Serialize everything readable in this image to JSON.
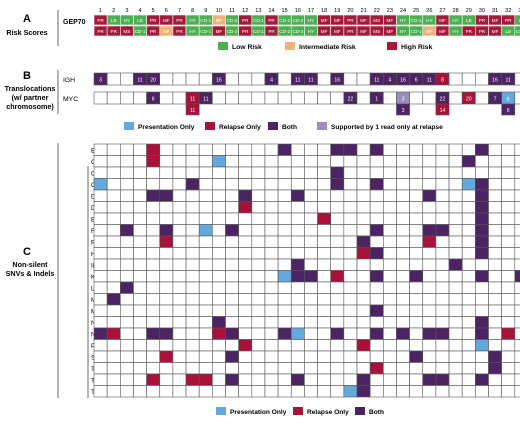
{
  "panels": {
    "a": {
      "letter": "A",
      "title": "Risk Scores"
    },
    "b": {
      "letter": "B",
      "title_lines": [
        "Translocations",
        "(w/ partner",
        "chromosome)"
      ]
    },
    "c": {
      "letter": "C",
      "title_lines": [
        "Non-silent",
        "SNVs & Indels"
      ]
    }
  },
  "colors": {
    "low": "#4caf50",
    "intermediate": "#f0b27a",
    "high": "#a31a3a",
    "presentation_only": "#64a9dc",
    "relapse_only": "#a8123a",
    "both": "#4d2463",
    "one_read": "#9d8cc2",
    "grid": "#555555",
    "empty": "#ffffff"
  },
  "sample_numbers": [
    "1",
    "2",
    "3",
    "4",
    "5",
    "6",
    "7",
    "8",
    "9",
    "10",
    "11",
    "12",
    "13",
    "14",
    "15",
    "16",
    "17",
    "18",
    "19",
    "20",
    "21",
    "22",
    "23",
    "24",
    "25",
    "26",
    "27",
    "28",
    "29",
    "30",
    "31",
    "32",
    "33"
  ],
  "gep70": {
    "label": "GEP70",
    "row1": [
      {
        "text": "PR",
        "risk": "high"
      },
      {
        "text": "LB",
        "risk": "low"
      },
      {
        "text": "HY",
        "risk": "low"
      },
      {
        "text": "LB",
        "risk": "low"
      },
      {
        "text": "PR",
        "risk": "high"
      },
      {
        "text": "MF",
        "risk": "high"
      },
      {
        "text": "PR",
        "risk": "high"
      },
      {
        "text": "HY",
        "risk": "low"
      },
      {
        "text": "CD-1",
        "risk": "low"
      },
      {
        "text": "MF",
        "risk": "intermediate"
      },
      {
        "text": "CD-2",
        "risk": "low"
      },
      {
        "text": "PR",
        "risk": "high"
      },
      {
        "text": "CD-1",
        "risk": "low"
      },
      {
        "text": "PR",
        "risk": "high"
      },
      {
        "text": "CD-2",
        "risk": "low"
      },
      {
        "text": "CD-2",
        "risk": "low"
      },
      {
        "text": "HY",
        "risk": "low"
      },
      {
        "text": "MF",
        "risk": "high"
      },
      {
        "text": "MF",
        "risk": "high"
      },
      {
        "text": "PR",
        "risk": "high"
      },
      {
        "text": "MF",
        "risk": "high"
      },
      {
        "text": "MS",
        "risk": "high"
      },
      {
        "text": "MF",
        "risk": "high"
      },
      {
        "text": "HY",
        "risk": "low"
      },
      {
        "text": "CD-1",
        "risk": "low"
      },
      {
        "text": "HY",
        "risk": "low"
      },
      {
        "text": "MF",
        "risk": "high"
      },
      {
        "text": "HY",
        "risk": "low"
      },
      {
        "text": "LB",
        "risk": "low"
      },
      {
        "text": "PR",
        "risk": "high"
      },
      {
        "text": "MF",
        "risk": "high"
      },
      {
        "text": "PR",
        "risk": "high"
      },
      {
        "text": "LB",
        "risk": "low"
      }
    ],
    "row2": [
      {
        "text": "PR",
        "risk": "high"
      },
      {
        "text": "PR",
        "risk": "high"
      },
      {
        "text": "MS",
        "risk": "high"
      },
      {
        "text": "CD-1",
        "risk": "low"
      },
      {
        "text": "PR",
        "risk": "high"
      },
      {
        "text": "MF",
        "risk": "intermediate"
      },
      {
        "text": "PR",
        "risk": "high"
      },
      {
        "text": "HY",
        "risk": "low"
      },
      {
        "text": "CD-1",
        "risk": "low"
      },
      {
        "text": "MF",
        "risk": "high"
      },
      {
        "text": "CD-2",
        "risk": "low"
      },
      {
        "text": "PR",
        "risk": "high"
      },
      {
        "text": "CD-1",
        "risk": "low"
      },
      {
        "text": "PR",
        "risk": "high"
      },
      {
        "text": "CD-2",
        "risk": "low"
      },
      {
        "text": "CD-2",
        "risk": "low"
      },
      {
        "text": "HY",
        "risk": "low"
      },
      {
        "text": "MF",
        "risk": "high"
      },
      {
        "text": "MF",
        "risk": "high"
      },
      {
        "text": "PR",
        "risk": "high"
      },
      {
        "text": "MF",
        "risk": "high"
      },
      {
        "text": "MS",
        "risk": "high"
      },
      {
        "text": "MF",
        "risk": "high"
      },
      {
        "text": "HY",
        "risk": "low"
      },
      {
        "text": "CD-1",
        "risk": "low"
      },
      {
        "text": "MF",
        "risk": "intermediate"
      },
      {
        "text": "MF",
        "risk": "high"
      },
      {
        "text": "HY",
        "risk": "low"
      },
      {
        "text": "PR",
        "risk": "high"
      },
      {
        "text": "PR",
        "risk": "high"
      },
      {
        "text": "MF",
        "risk": "high"
      },
      {
        "text": "LB",
        "risk": "low"
      },
      {
        "text": "CD-2",
        "risk": "low"
      }
    ]
  },
  "risk_legend": [
    {
      "key": "low",
      "label": "Low Risk"
    },
    {
      "key": "intermediate",
      "label": "Intermediate Risk"
    },
    {
      "key": "high",
      "label": "High Risk"
    }
  ],
  "translocations": {
    "IGH": {
      "label": "IGH",
      "cells": [
        {
          "col": 1,
          "status": "both",
          "partner": "3"
        },
        {
          "col": 4,
          "status": "both",
          "partner": "11"
        },
        {
          "col": 5,
          "status": "both",
          "partner": "20"
        },
        {
          "col": 10,
          "status": "both",
          "partner": "16"
        },
        {
          "col": 14,
          "status": "both",
          "partner": "4"
        },
        {
          "col": 16,
          "status": "both",
          "partner": "11"
        },
        {
          "col": 17,
          "status": "both",
          "partner": "11"
        },
        {
          "col": 19,
          "status": "both",
          "partner": "16"
        },
        {
          "col": 22,
          "status": "both",
          "partner": "11"
        },
        {
          "col": 23,
          "status": "both",
          "partner": "4"
        },
        {
          "col": 24,
          "status": "both",
          "partner": "16"
        },
        {
          "col": 25,
          "status": "both",
          "partner": "6"
        },
        {
          "col": 26,
          "status": "both",
          "partner": "11"
        },
        {
          "col": 27,
          "status": "relapse_only",
          "partner": "8"
        },
        {
          "col": 31,
          "status": "both",
          "partner": "16"
        },
        {
          "col": 32,
          "status": "both",
          "partner": "11"
        }
      ]
    },
    "MYC": {
      "label": "MYC",
      "cells": [
        {
          "col": 5,
          "status": "both",
          "partner": "6"
        },
        {
          "col": 8,
          "status": "relapse_only",
          "partner": "11"
        },
        {
          "col": 9,
          "status": "both",
          "partner": "11"
        },
        {
          "col": 20,
          "status": "both",
          "partner": "22"
        },
        {
          "col": 22,
          "status": "both",
          "partner": "1"
        },
        {
          "col": 24,
          "status": "one_read",
          "partner": "3"
        },
        {
          "col": 27,
          "status": "both",
          "partner": "22"
        },
        {
          "col": 29,
          "status": "relapse_only",
          "partner": "20"
        },
        {
          "col": 31,
          "status": "both",
          "partner": "7"
        },
        {
          "col": 32,
          "status": "presentation_only",
          "partner": "6"
        }
      ],
      "secondary": [
        {
          "col": 8,
          "status": "relapse_only",
          "partner": "11"
        },
        {
          "col": 24,
          "status": "both",
          "partner": "3"
        },
        {
          "col": 27,
          "status": "relapse_only",
          "partner": "14"
        },
        {
          "col": 32,
          "status": "both",
          "partner": "6"
        }
      ]
    }
  },
  "translocation_legend": [
    {
      "key": "presentation_only",
      "label": "Presentation Only"
    },
    {
      "key": "relapse_only",
      "label": "Relapse Only"
    },
    {
      "key": "both",
      "label": "Both"
    },
    {
      "key": "one_read",
      "label": "Supported by 1 read only at relapse"
    }
  ],
  "genes": [
    {
      "name": "BRAF",
      "cells": [
        [
          5,
          "relapse_only"
        ],
        [
          15,
          "both"
        ],
        [
          19,
          "both"
        ],
        [
          20,
          "both"
        ],
        [
          22,
          "both"
        ],
        [
          30,
          "both"
        ]
      ]
    },
    {
      "name": "CDKN2C",
      "cells": [
        [
          5,
          "relapse_only"
        ],
        [
          10,
          "presentation_only"
        ],
        [
          29,
          "both"
        ]
      ]
    },
    {
      "name": "CHD2",
      "cells": [
        [
          19,
          "both"
        ]
      ]
    },
    {
      "name": "CYLD",
      "cells": [
        [
          1,
          "presentation_only"
        ],
        [
          8,
          "both"
        ],
        [
          19,
          "both"
        ],
        [
          22,
          "both"
        ],
        [
          29,
          "presentation_only"
        ],
        [
          30,
          "both"
        ]
      ]
    },
    {
      "name": "DIS3",
      "cells": [
        [
          5,
          "both"
        ],
        [
          6,
          "both"
        ],
        [
          12,
          "both"
        ],
        [
          16,
          "both"
        ],
        [
          26,
          "both"
        ],
        [
          30,
          "both"
        ]
      ]
    },
    {
      "name": "DOT1L",
      "cells": [
        [
          12,
          "relapse_only"
        ],
        [
          30,
          "both"
        ]
      ]
    },
    {
      "name": "EGFR",
      "cells": [
        [
          18,
          "relapse_only"
        ],
        [
          30,
          "both"
        ]
      ]
    },
    {
      "name": "FAM46C",
      "cells": [
        [
          3,
          "both"
        ],
        [
          6,
          "both"
        ],
        [
          9,
          "presentation_only"
        ],
        [
          11,
          "both"
        ],
        [
          22,
          "both"
        ],
        [
          26,
          "both"
        ],
        [
          27,
          "both"
        ],
        [
          30,
          "both"
        ]
      ]
    },
    {
      "name": "FANCA",
      "cells": [
        [
          6,
          "relapse_only"
        ],
        [
          21,
          "both"
        ],
        [
          26,
          "relapse_only"
        ],
        [
          30,
          "both"
        ]
      ]
    },
    {
      "name": "HDAC4",
      "cells": [
        [
          21,
          "relapse_only"
        ],
        [
          22,
          "both"
        ],
        [
          30,
          "both"
        ]
      ]
    },
    {
      "name": "IRF4",
      "cells": [
        [
          16,
          "both"
        ],
        [
          28,
          "both"
        ]
      ]
    },
    {
      "name": "KRAS",
      "cells": [
        [
          15,
          "presentation_only"
        ],
        [
          16,
          "both"
        ],
        [
          17,
          "both"
        ],
        [
          19,
          "relapse_only"
        ],
        [
          22,
          "both"
        ],
        [
          25,
          "both"
        ],
        [
          30,
          "both"
        ],
        [
          33,
          "both"
        ]
      ]
    },
    {
      "name": "LTB",
      "cells": [
        [
          3,
          "both"
        ]
      ]
    },
    {
      "name": "MAX",
      "cells": [
        [
          2,
          "both"
        ]
      ]
    },
    {
      "name": "MYC",
      "cells": [
        [
          22,
          "both"
        ]
      ]
    },
    {
      "name": "NF1",
      "cells": [
        [
          10,
          "both"
        ],
        [
          30,
          "both"
        ]
      ]
    },
    {
      "name": "NRAS",
      "cells": [
        [
          1,
          "both"
        ],
        [
          2,
          "relapse_only"
        ],
        [
          5,
          "both"
        ],
        [
          6,
          "both"
        ],
        [
          10,
          "relapse_only"
        ],
        [
          11,
          "both"
        ],
        [
          15,
          "both"
        ],
        [
          16,
          "presentation_only"
        ],
        [
          19,
          "both"
        ],
        [
          22,
          "both"
        ],
        [
          24,
          "both"
        ],
        [
          26,
          "both"
        ],
        [
          27,
          "both"
        ],
        [
          30,
          "both"
        ],
        [
          32,
          "relapse_only"
        ]
      ]
    },
    {
      "name": "PRDM1",
      "cells": [
        [
          12,
          "relapse_only"
        ],
        [
          21,
          "relapse_only"
        ],
        [
          30,
          "presentation_only"
        ]
      ]
    },
    {
      "name": "SETD2",
      "cells": [
        [
          6,
          "relapse_only"
        ],
        [
          11,
          "both"
        ],
        [
          25,
          "both"
        ],
        [
          31,
          "both"
        ]
      ]
    },
    {
      "name": "TET2",
      "cells": [
        [
          22,
          "relapse_only"
        ],
        [
          31,
          "both"
        ]
      ]
    },
    {
      "name": "TP53",
      "cells": [
        [
          5,
          "relapse_only"
        ],
        [
          8,
          "relapse_only"
        ],
        [
          9,
          "relapse_only"
        ],
        [
          11,
          "both"
        ],
        [
          16,
          "both"
        ],
        [
          21,
          "both"
        ],
        [
          26,
          "both"
        ],
        [
          27,
          "both"
        ],
        [
          30,
          "both"
        ]
      ]
    },
    {
      "name": "TRAF3",
      "cells": [
        [
          20,
          "presentation_only"
        ],
        [
          21,
          "both"
        ]
      ]
    }
  ],
  "snv_legend": [
    {
      "key": "presentation_only",
      "label": "Presentation Only"
    },
    {
      "key": "relapse_only",
      "label": "Relapse Only"
    },
    {
      "key": "both",
      "label": "Both"
    }
  ]
}
